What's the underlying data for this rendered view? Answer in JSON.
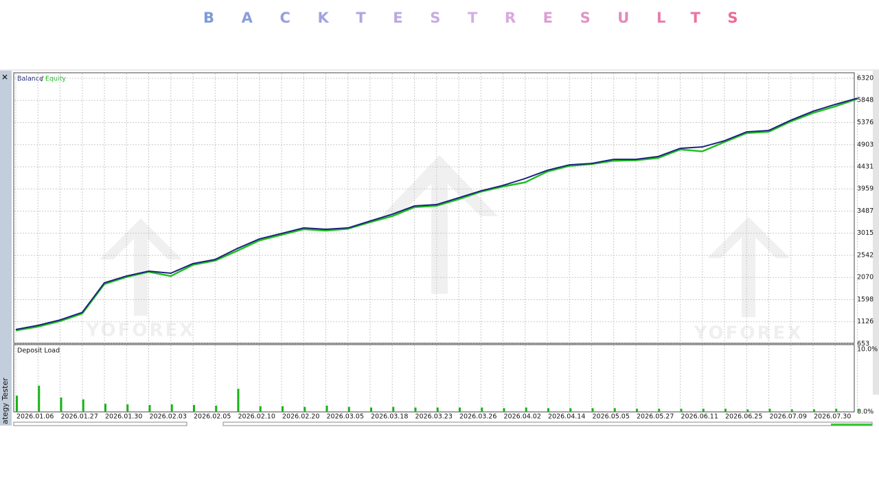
{
  "header": {
    "title": "BACKTESTRESULTS"
  },
  "sidebar": {
    "label": "ategy Tester",
    "close": "✕"
  },
  "watermark": "YOFOREX",
  "chart_data": [
    {
      "type": "line",
      "title": "Balance",
      "categories": [
        "2026.01.06",
        null,
        "2026.01.27",
        null,
        "2026.01.30",
        null,
        "2026.02.03",
        null,
        "2026.02.05",
        null,
        "2026.02.10",
        null,
        "2026.02.20",
        null,
        "2026.03.05",
        null,
        "2026.03.18",
        null,
        "2026.03.23",
        null,
        "2026.03.26",
        null,
        "2026.04.02",
        null,
        "2026.04.14",
        null,
        "2026.05.05",
        null,
        "2026.05.27",
        null,
        "2026.06.11",
        null,
        "2026.06.25",
        null,
        "2026.07.09",
        null,
        "2026.07.30",
        null,
        null
      ],
      "series": [
        {
          "name": "Balance",
          "color": "#1a237e",
          "values": [
            960,
            1048,
            1165,
            1326,
            1956,
            2102,
            2205,
            2161,
            2366,
            2454,
            2688,
            2893,
            3010,
            3127,
            3098,
            3127,
            3274,
            3420,
            3596,
            3625,
            3771,
            3918,
            4035,
            4181,
            4357,
            4474,
            4503,
            4591,
            4591,
            4650,
            4825,
            4855,
            4986,
            5177,
            5206,
            5426,
            5616,
            5762,
            5894
          ]
        },
        {
          "name": "Equity",
          "color": "#1fbf1f",
          "values": [
            940,
            1020,
            1140,
            1300,
            1930,
            2080,
            2190,
            2100,
            2340,
            2430,
            2640,
            2860,
            2980,
            3100,
            3070,
            3110,
            3250,
            3380,
            3570,
            3600,
            3740,
            3900,
            4010,
            4100,
            4330,
            4450,
            4490,
            4560,
            4570,
            4620,
            4800,
            4760,
            4960,
            5150,
            5180,
            5400,
            5580,
            5720,
            5880
          ]
        }
      ],
      "ylim": [
        653,
        6320
      ],
      "yticks": [
        653,
        1126,
        1598,
        2070,
        2542,
        3015,
        3487,
        3959,
        4431,
        4903,
        5376,
        5848,
        6320
      ],
      "grid": true
    },
    {
      "type": "bar",
      "title": "Deposit Load",
      "color": "#19b319",
      "values": [
        2.6,
        4.2,
        2.3,
        2.0,
        1.3,
        1.2,
        1.1,
        1.2,
        1.1,
        1.0,
        3.7,
        0.9,
        0.9,
        0.8,
        1.0,
        0.8,
        0.7,
        0.8,
        0.7,
        0.7,
        0.7,
        0.7,
        0.6,
        0.7,
        0.6,
        0.6,
        0.6,
        0.6,
        0.5,
        0.5,
        0.5,
        0.5,
        0.5,
        0.4,
        0.5,
        0.4,
        0.4,
        0.5,
        0.4
      ],
      "ylim": [
        0,
        10
      ],
      "yticks": [
        {
          "value": 0,
          "label": "0.0%"
        },
        {
          "value": 10,
          "label": "10.0%"
        }
      ]
    }
  ]
}
